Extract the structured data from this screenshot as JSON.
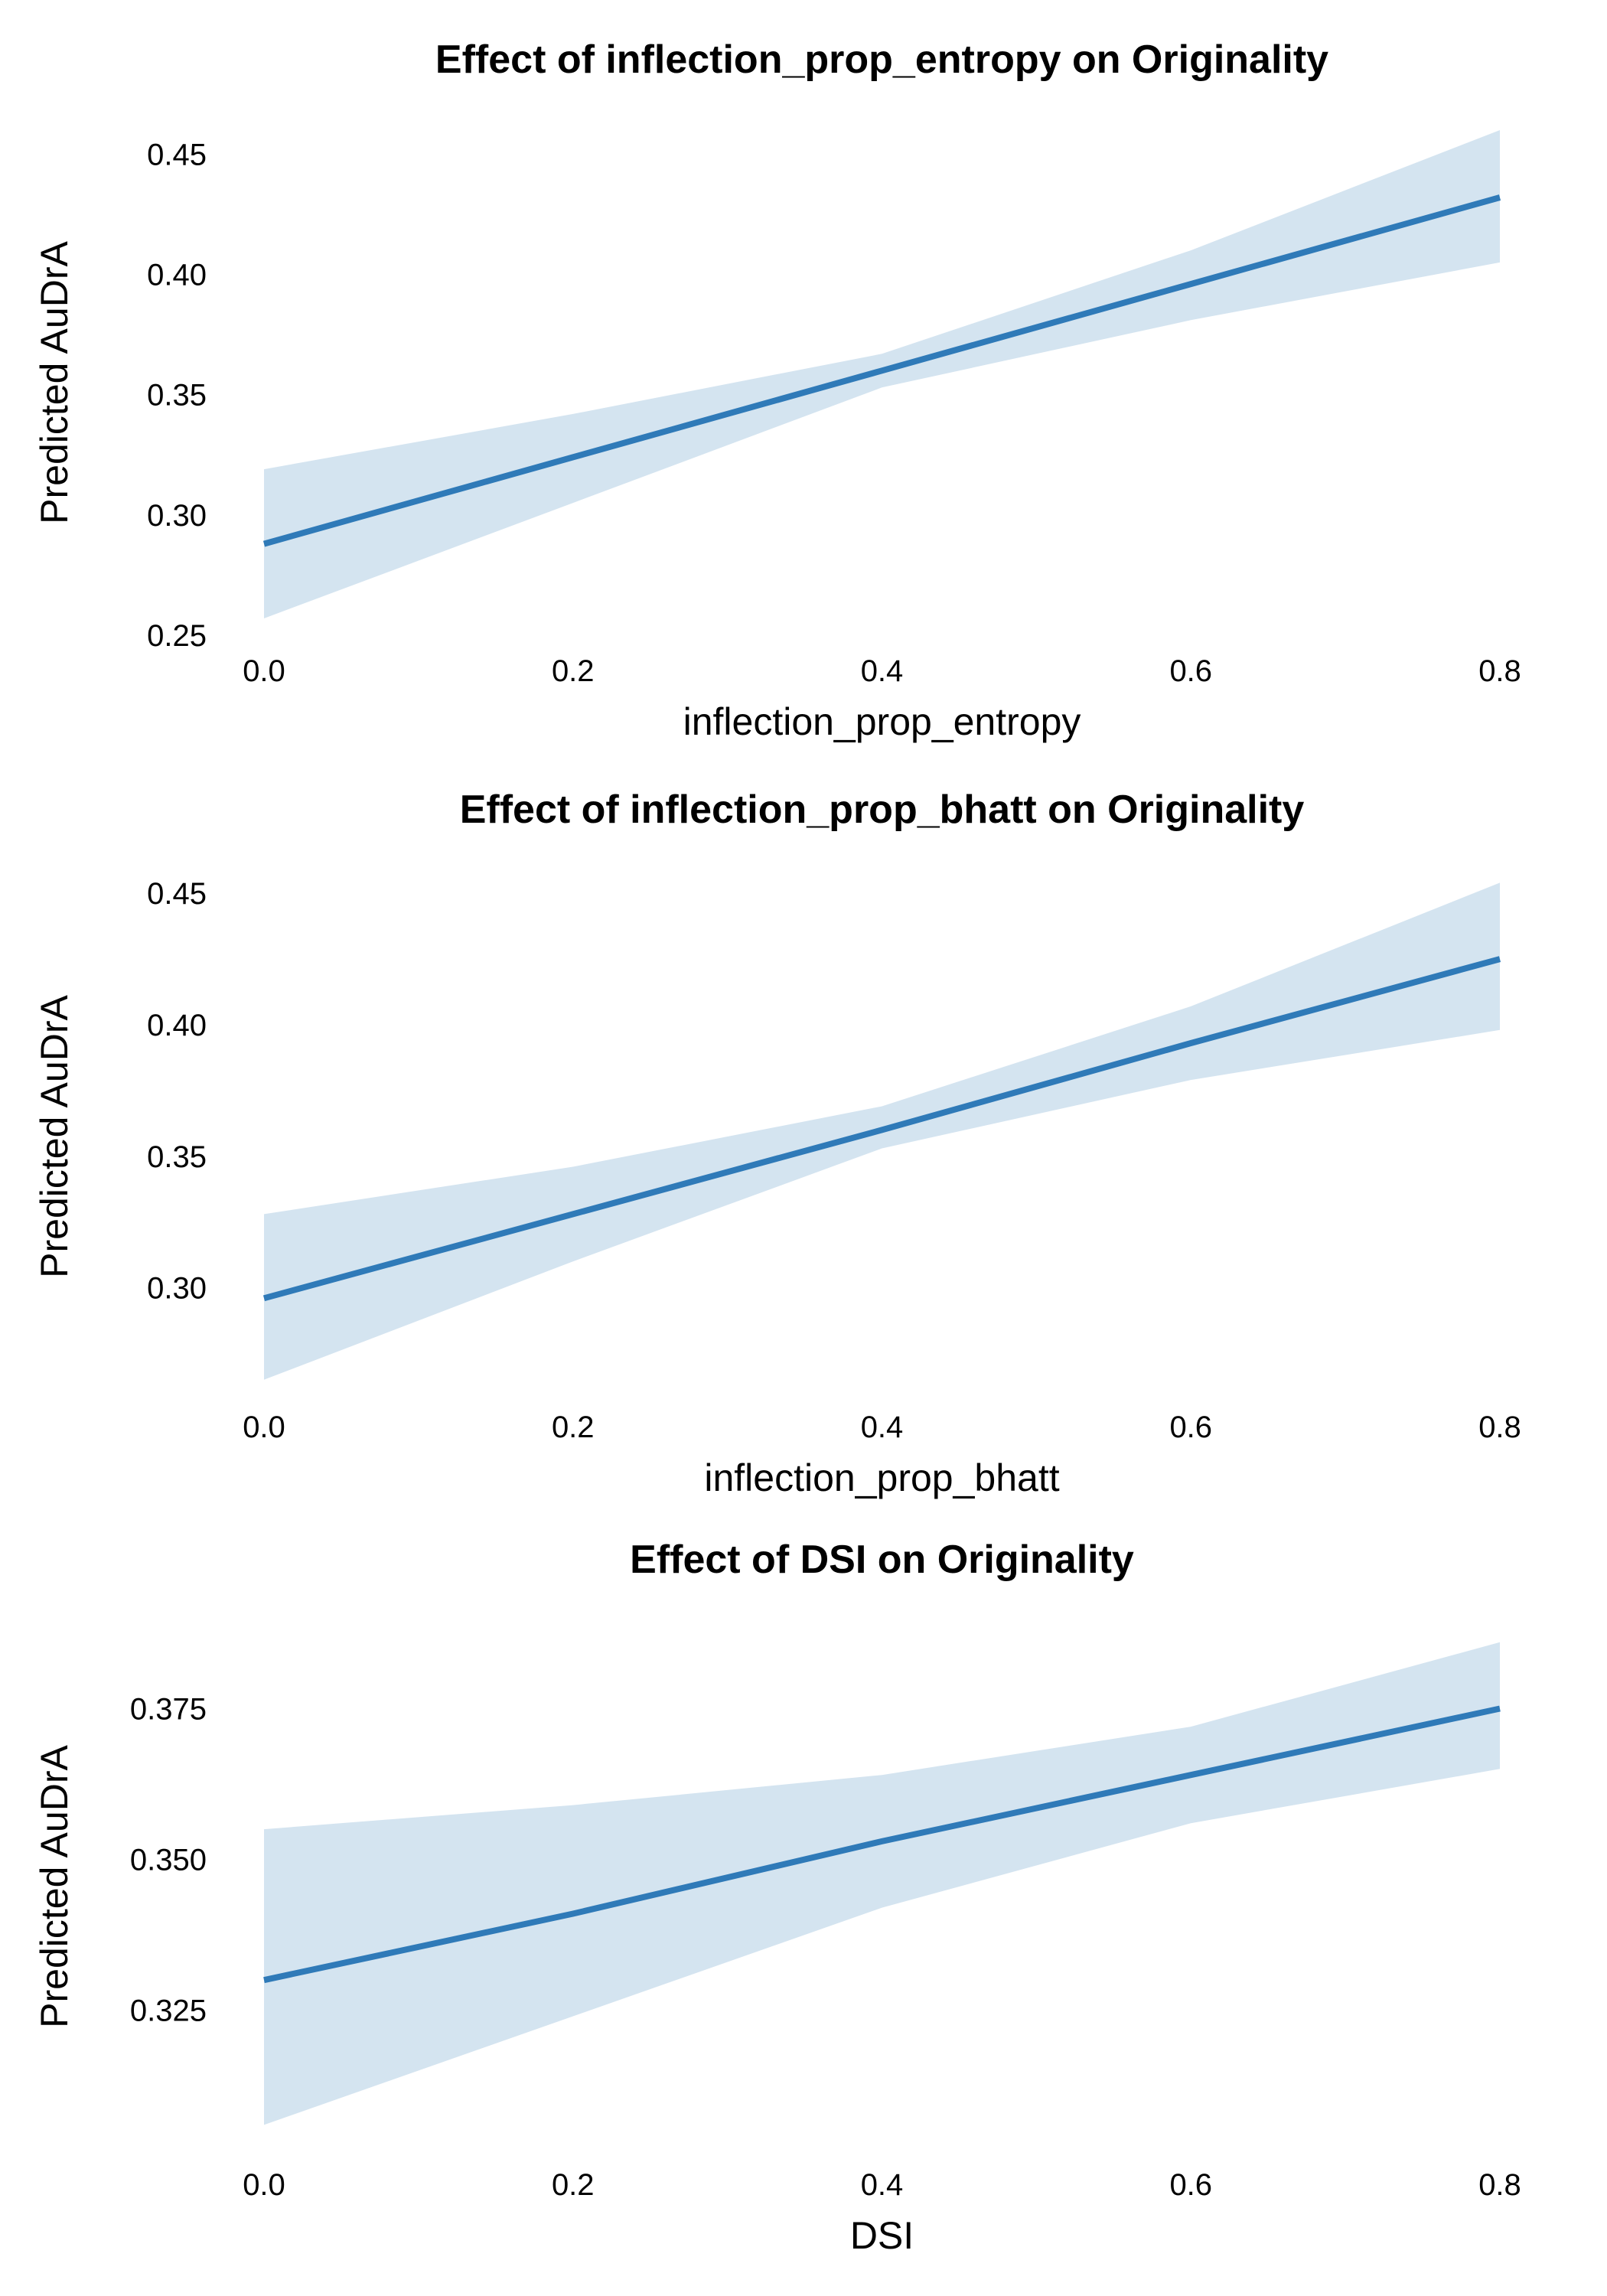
{
  "colors": {
    "line": "#2f7ab8",
    "band": "#d4e4f0",
    "background": "#ffffff",
    "text": "#000000"
  },
  "chart_data": [
    {
      "type": "line",
      "title": "Effect of inflection_prop_entropy on Originality",
      "xlabel": "inflection_prop_entropy",
      "ylabel": "Predicted AuDrA",
      "xlim": [
        0.0,
        0.8
      ],
      "ylim": [
        0.25,
        0.46
      ],
      "x_ticks": [
        "0.0",
        "0.2",
        "0.4",
        "0.6",
        "0.8"
      ],
      "y_ticks": [
        "0.25",
        "0.30",
        "0.35",
        "0.40",
        "0.45"
      ],
      "grid": false,
      "series": [
        {
          "x": [
            0.0,
            0.2,
            0.4,
            0.6,
            0.8
          ],
          "y": [
            0.288,
            0.324,
            0.36,
            0.396,
            0.432
          ],
          "lower": [
            0.257,
            0.305,
            0.353,
            0.381,
            0.405
          ],
          "upper": [
            0.319,
            0.342,
            0.367,
            0.41,
            0.46
          ]
        }
      ]
    },
    {
      "type": "line",
      "title": "Effect of inflection_prop_bhatt on Originality",
      "xlabel": "inflection_prop_bhatt",
      "ylabel": "Predicted AuDrA",
      "xlim": [
        0.0,
        0.8
      ],
      "ylim": [
        0.26,
        0.455
      ],
      "x_ticks": [
        "0.0",
        "0.2",
        "0.4",
        "0.6",
        "0.8"
      ],
      "y_ticks": [
        "0.30",
        "0.35",
        "0.40",
        "0.45"
      ],
      "grid": false,
      "series": [
        {
          "x": [
            0.0,
            0.2,
            0.4,
            0.6,
            0.8
          ],
          "y": [
            0.296,
            0.328,
            0.36,
            0.393,
            0.425
          ],
          "lower": [
            0.265,
            0.31,
            0.353,
            0.379,
            0.398
          ],
          "upper": [
            0.328,
            0.346,
            0.369,
            0.407,
            0.454
          ]
        }
      ]
    },
    {
      "type": "line",
      "title": "Effect of DSI on Originality",
      "xlabel": "DSI",
      "ylabel": "Predicted AuDrA",
      "xlim": [
        0.0,
        0.8
      ],
      "ylim": [
        0.303,
        0.388
      ],
      "x_ticks": [
        "0.0",
        "0.2",
        "0.4",
        "0.6",
        "0.8"
      ],
      "y_ticks": [
        "0.325",
        "0.350",
        "0.375"
      ],
      "grid": false,
      "series": [
        {
          "x": [
            0.0,
            0.2,
            0.4,
            0.6,
            0.8
          ],
          "y": [
            0.33,
            0.341,
            0.353,
            0.364,
            0.375
          ],
          "lower": [
            0.306,
            0.324,
            0.342,
            0.356,
            0.365
          ],
          "upper": [
            0.355,
            0.359,
            0.364,
            0.372,
            0.386
          ]
        }
      ]
    }
  ]
}
